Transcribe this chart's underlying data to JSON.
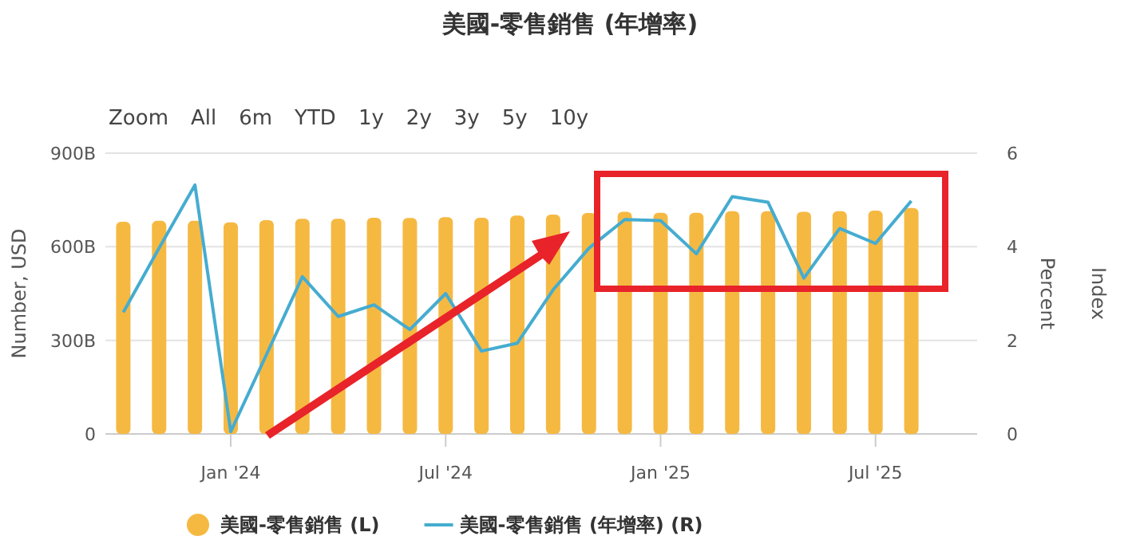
{
  "chart_data": {
    "type": "bar",
    "title": "美國-零售銷售 (年增率)",
    "annotations": [
      "Zoom",
      "All",
      "6m",
      "YTD",
      "1y",
      "2y",
      "3y",
      "5y",
      "10y"
    ],
    "ylabel": "Number, USD",
    "y2label": "Percent",
    "y3label": "Index",
    "categories": [
      null,
      null,
      null,
      "Jan '24",
      null,
      null,
      null,
      null,
      null,
      "Jul '24",
      null,
      null,
      null,
      null,
      null,
      "Jan '25",
      null,
      null,
      null,
      null,
      null,
      "Jul '25",
      null
    ],
    "series": [
      {
        "name": "美國-零售銷售 (L)",
        "color": "#f5b942",
        "values": [
          680,
          683,
          683,
          678,
          685,
          690,
          690,
          693,
          692,
          695,
          693,
          700,
          703,
          708,
          712,
          709,
          709,
          714,
          714,
          712,
          714,
          716,
          724
        ]
      },
      {
        "name": "美國-零售銷售 (年增率) (R)",
        "type": "line",
        "axis": "y2",
        "color": "#45acd0",
        "values": [
          2.6,
          3.97,
          5.32,
          0.05,
          1.7,
          3.36,
          2.51,
          2.76,
          2.23,
          3.0,
          1.77,
          1.94,
          3.08,
          3.97,
          4.58,
          4.56,
          3.85,
          5.07,
          4.95,
          3.33,
          4.39,
          4.07,
          4.98
        ]
      }
    ],
    "ylim": [
      0,
      900
    ],
    "yticks": [
      0,
      {
        "value": 300,
        "label": "300B"
      },
      {
        "value": 600,
        "label": "600B"
      },
      {
        "value": 900,
        "label": "900B"
      }
    ],
    "y2lim": [
      0,
      6
    ],
    "y2ticks": [
      0,
      2,
      4,
      6
    ],
    "grid": "y",
    "legend": "bottom",
    "marker": "none"
  }
}
